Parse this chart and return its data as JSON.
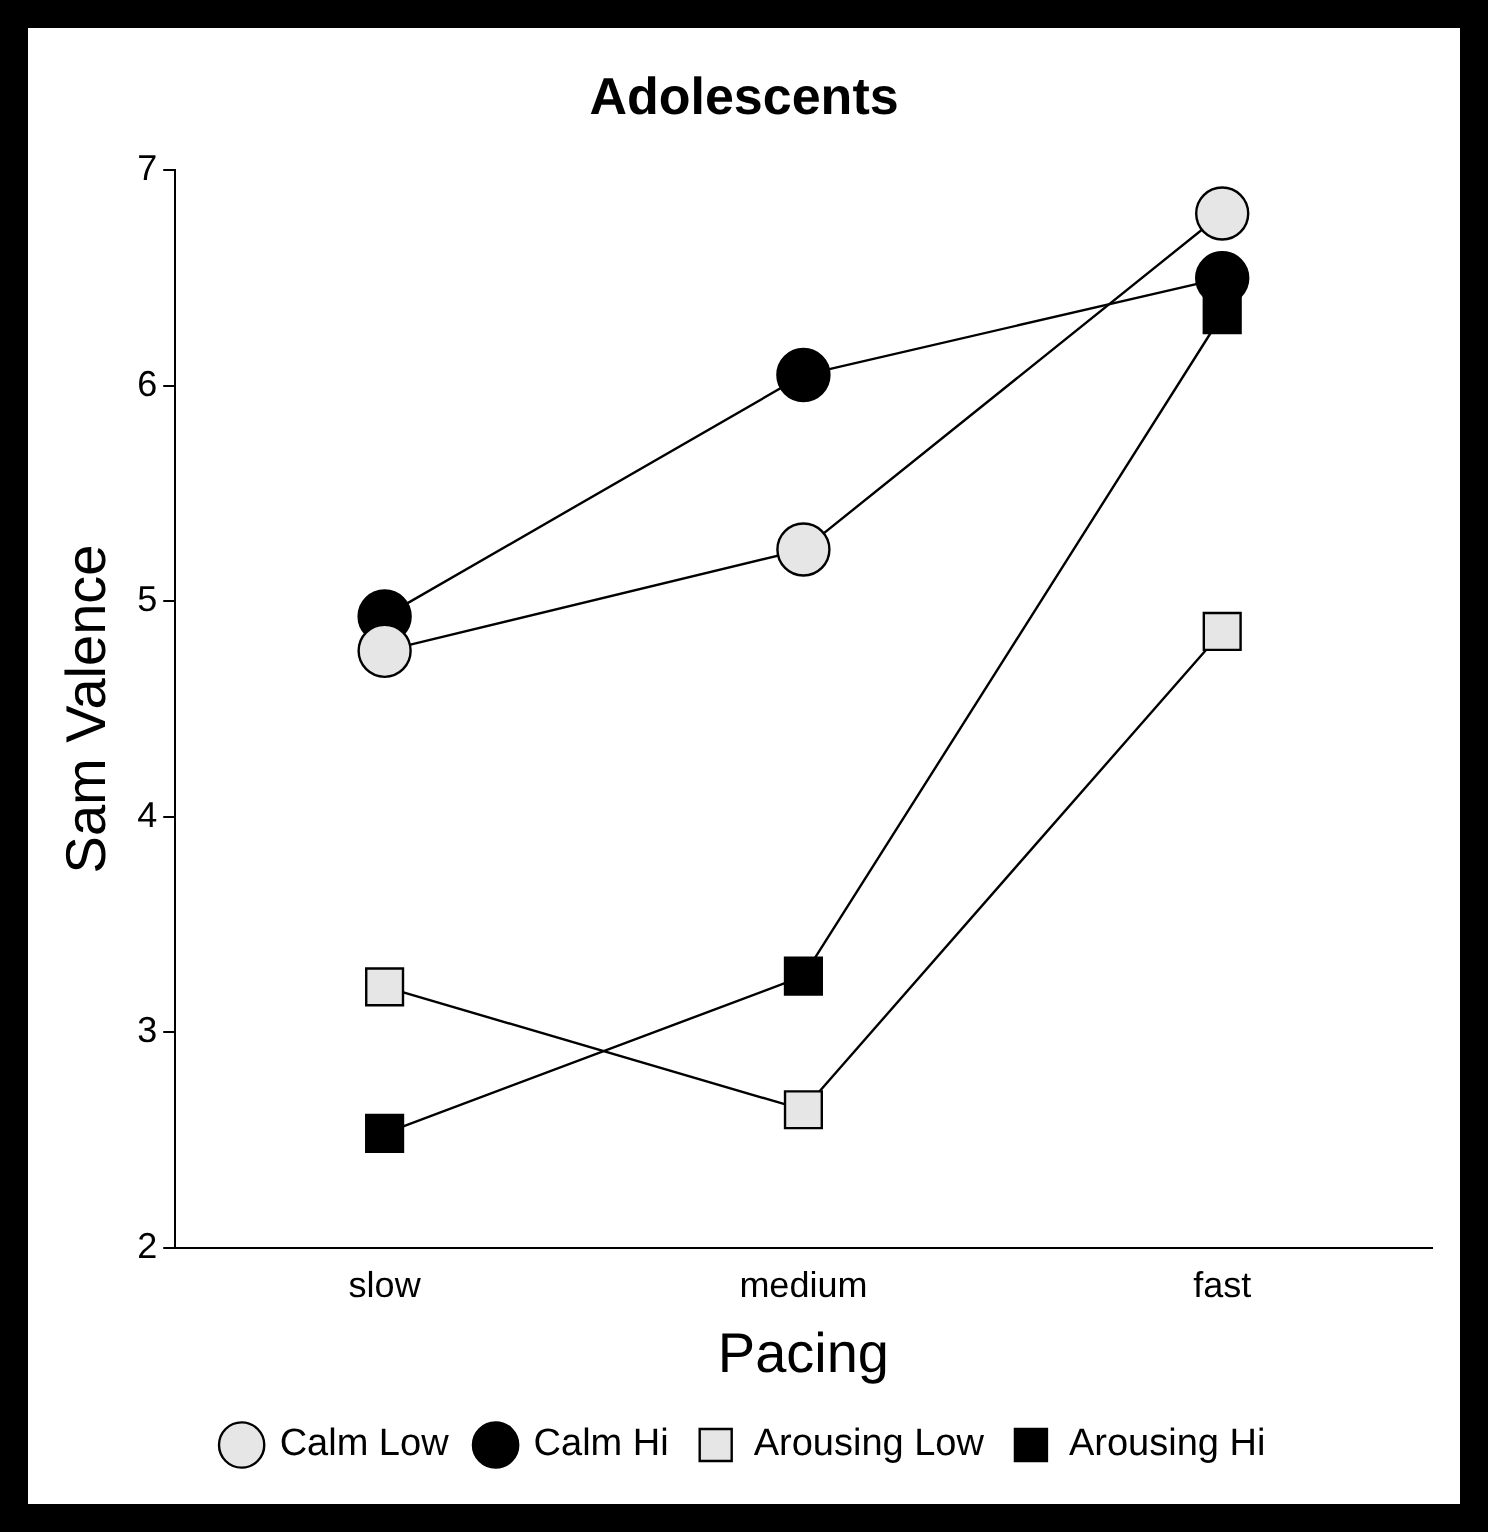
{
  "chart_data": {
    "type": "line",
    "title": "Adolescents",
    "xlabel": "Pacing",
    "ylabel": "Sam Valence",
    "categories": [
      "slow",
      "medium",
      "fast"
    ],
    "ylim": [
      2,
      7
    ],
    "yticks": [
      2,
      3,
      4,
      5,
      6,
      7
    ],
    "grid": false,
    "legend": "bottom",
    "line_style": "solid",
    "series": [
      {
        "name": "Calm Low",
        "color": "#e6e6e6",
        "marker": "circle",
        "values": [
          4.77,
          5.24,
          6.8
        ]
      },
      {
        "name": "Calm Hi",
        "color": "#000000",
        "marker": "circle",
        "values": [
          4.93,
          6.05,
          6.5
        ]
      },
      {
        "name": "Arousing Low",
        "color": "#e6e6e6",
        "marker": "square",
        "values": [
          3.21,
          2.64,
          4.86
        ]
      },
      {
        "name": "Arousing Hi",
        "color": "#000000",
        "marker": "square",
        "values": [
          2.53,
          3.26,
          6.33
        ]
      }
    ]
  }
}
